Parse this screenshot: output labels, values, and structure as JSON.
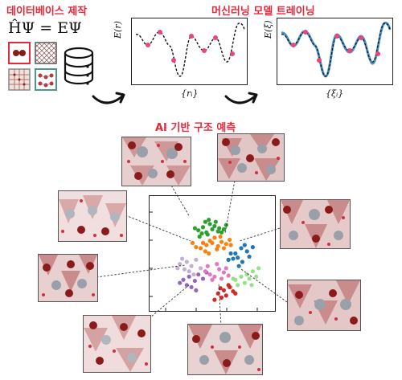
{
  "titles": {
    "database": "데이터베이스 제작",
    "training": "머신러닝 모델 트레이닝",
    "prediction": "AI 기반 구조 예측"
  },
  "equation": "ĤΨ = EΨ",
  "panels": {
    "left": {
      "ylabel": "E(r)",
      "xlabel": "{rᵢ}"
    },
    "right": {
      "ylabel": "E(ξ)",
      "xlabel": "{ξᵢ}"
    }
  },
  "colors": {
    "accent": "#e8283a",
    "sample_point": "#e8457a",
    "fit_curve": "#4a8fc8",
    "crystal_tint": "#c98b8b"
  },
  "icons": [
    "database-icon",
    "dumbbell-tile-icon",
    "hatched-tile-icon",
    "grid-tile-icon",
    "molecule-tile-icon",
    "curved-arrow-icon"
  ],
  "chart_data": {
    "type": "scatter",
    "title": "",
    "xlabel": "",
    "ylabel": "",
    "grid": false,
    "series": [
      {
        "color": "#2ca02c",
        "values": [
          [
            38,
            72
          ],
          [
            42,
            75
          ],
          [
            45,
            70
          ],
          [
            48,
            78
          ],
          [
            50,
            73
          ],
          [
            52,
            76
          ],
          [
            55,
            71
          ],
          [
            46,
            68
          ],
          [
            41,
            69
          ],
          [
            56,
            74
          ],
          [
            44,
            80
          ],
          [
            58,
            70
          ],
          [
            35,
            74
          ],
          [
            53,
            80
          ],
          [
            60,
            73
          ],
          [
            47,
            82
          ],
          [
            39,
            66
          ],
          [
            62,
            77
          ]
        ]
      },
      {
        "color": "#ff7f0e",
        "values": [
          [
            40,
            55
          ],
          [
            45,
            58
          ],
          [
            50,
            60
          ],
          [
            55,
            57
          ],
          [
            48,
            62
          ],
          [
            52,
            65
          ],
          [
            58,
            61
          ],
          [
            62,
            59
          ],
          [
            44,
            52
          ],
          [
            36,
            56
          ],
          [
            60,
            55
          ],
          [
            65,
            63
          ],
          [
            47,
            50
          ],
          [
            54,
            54
          ],
          [
            42,
            60
          ],
          [
            66,
            58
          ],
          [
            57,
            66
          ],
          [
            33,
            60
          ]
        ]
      },
      {
        "color": "#1f77b4",
        "values": [
          [
            70,
            50
          ],
          [
            75,
            55
          ],
          [
            80,
            52
          ],
          [
            78,
            58
          ],
          [
            72,
            46
          ],
          [
            68,
            45
          ],
          [
            82,
            47
          ],
          [
            76,
            42
          ],
          [
            64,
            44
          ],
          [
            85,
            56
          ],
          [
            66,
            50
          ],
          [
            73,
            38
          ]
        ]
      },
      {
        "color": "#c5b0d5",
        "values": [
          [
            22,
            40
          ],
          [
            28,
            42
          ],
          [
            32,
            38
          ],
          [
            36,
            44
          ],
          [
            26,
            35
          ],
          [
            40,
            36
          ],
          [
            30,
            33
          ],
          [
            24,
            45
          ],
          [
            34,
            30
          ],
          [
            20,
            36
          ]
        ]
      },
      {
        "color": "#9467bd",
        "values": [
          [
            25,
            25
          ],
          [
            30,
            28
          ],
          [
            35,
            24
          ],
          [
            38,
            30
          ],
          [
            28,
            20
          ],
          [
            42,
            26
          ],
          [
            32,
            18
          ],
          [
            22,
            22
          ],
          [
            45,
            32
          ],
          [
            36,
            15
          ]
        ]
      },
      {
        "color": "#e377c2",
        "values": [
          [
            48,
            30
          ],
          [
            52,
            28
          ],
          [
            56,
            35
          ],
          [
            50,
            25
          ],
          [
            60,
            32
          ],
          [
            46,
            38
          ],
          [
            58,
            26
          ],
          [
            54,
            40
          ],
          [
            62,
            36
          ],
          [
            44,
            33
          ],
          [
            64,
            29
          ]
        ]
      },
      {
        "color": "#98df8a",
        "values": [
          [
            70,
            25
          ],
          [
            75,
            28
          ],
          [
            80,
            30
          ],
          [
            85,
            33
          ],
          [
            72,
            20
          ],
          [
            78,
            22
          ],
          [
            82,
            26
          ],
          [
            88,
            28
          ],
          [
            66,
            18
          ],
          [
            90,
            36
          ],
          [
            68,
            26
          ],
          [
            84,
            20
          ]
        ]
      },
      {
        "color": "#d62728",
        "values": [
          [
            55,
            12
          ],
          [
            60,
            15
          ],
          [
            62,
            10
          ],
          [
            65,
            18
          ],
          [
            58,
            8
          ],
          [
            68,
            14
          ],
          [
            52,
            6
          ],
          [
            64,
            20
          ],
          [
            70,
            12
          ],
          [
            57,
            17
          ]
        ]
      }
    ]
  }
}
